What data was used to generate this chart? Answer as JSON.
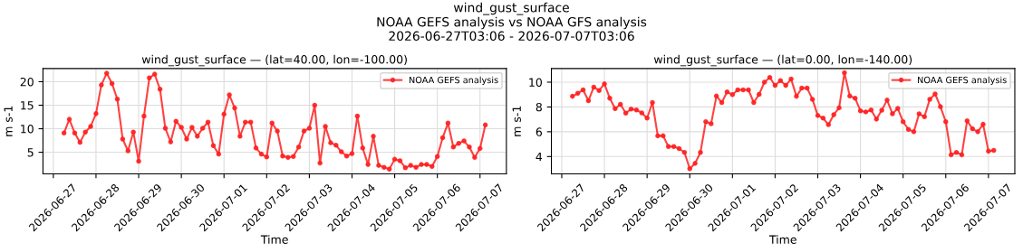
{
  "chart_data": [
    {
      "type": "line",
      "title": "wind_gust_surface — (lat=40.00, lon=-100.00)",
      "annotations": [
        "wind_gust_surface",
        "NOAA GEFS analysis vs NOAA GFS analysis",
        "2026-06-27T03:06 - 2026-07-07T03:06"
      ],
      "xlabel": "Time",
      "ylabel": "m s-1",
      "x": [
        "2026-06-27T06:00",
        "2026-06-27T09:00",
        "2026-06-27T12:00",
        "2026-06-27T15:00",
        "2026-06-27T18:00",
        "2026-06-27T21:00",
        "2026-06-28T00:00",
        "2026-06-28T03:00",
        "2026-06-28T06:00",
        "2026-06-28T09:00",
        "2026-06-28T12:00",
        "2026-06-28T15:00",
        "2026-06-28T18:00",
        "2026-06-28T21:00",
        "2026-06-29T00:00",
        "2026-06-29T03:00",
        "2026-06-29T06:00",
        "2026-06-29T09:00",
        "2026-06-29T12:00",
        "2026-06-29T15:00",
        "2026-06-29T18:00",
        "2026-06-29T21:00",
        "2026-06-30T00:00",
        "2026-06-30T03:00",
        "2026-06-30T06:00",
        "2026-06-30T09:00",
        "2026-06-30T12:00",
        "2026-06-30T15:00",
        "2026-06-30T18:00",
        "2026-06-30T21:00",
        "2026-07-01T00:00",
        "2026-07-01T03:00",
        "2026-07-01T06:00",
        "2026-07-01T09:00",
        "2026-07-01T12:00",
        "2026-07-01T15:00",
        "2026-07-01T18:00",
        "2026-07-01T21:00",
        "2026-07-02T00:00",
        "2026-07-02T03:00",
        "2026-07-02T06:00",
        "2026-07-02T09:00",
        "2026-07-02T12:00",
        "2026-07-02T15:00",
        "2026-07-02T18:00",
        "2026-07-02T21:00",
        "2026-07-03T00:00",
        "2026-07-03T03:00",
        "2026-07-03T06:00",
        "2026-07-03T09:00",
        "2026-07-03T12:00",
        "2026-07-03T15:00",
        "2026-07-03T18:00",
        "2026-07-03T21:00",
        "2026-07-04T00:00",
        "2026-07-04T03:00",
        "2026-07-04T06:00",
        "2026-07-04T09:00",
        "2026-07-04T12:00",
        "2026-07-04T15:00",
        "2026-07-04T18:00",
        "2026-07-04T21:00",
        "2026-07-05T00:00",
        "2026-07-05T03:00",
        "2026-07-05T06:00",
        "2026-07-05T09:00",
        "2026-07-05T12:00",
        "2026-07-05T15:00",
        "2026-07-05T18:00",
        "2026-07-05T21:00",
        "2026-07-06T00:00",
        "2026-07-06T03:00",
        "2026-07-06T06:00",
        "2026-07-06T09:00",
        "2026-07-06T12:00",
        "2026-07-06T15:00",
        "2026-07-06T18:00",
        "2026-07-06T21:00",
        "2026-07-07T00:00",
        "2026-07-07T03:00"
      ],
      "series": [
        {
          "name": "NOAA GEFS analysis",
          "color": "#ff2020",
          "values": [
            9.1,
            12.0,
            9.1,
            7.1,
            9.3,
            10.5,
            13.2,
            19.3,
            21.8,
            19.6,
            16.3,
            7.8,
            5.3,
            9.3,
            3.1,
            12.7,
            20.8,
            21.6,
            18.4,
            10.1,
            7.2,
            11.6,
            10.3,
            7.8,
            10.3,
            8.4,
            10.1,
            11.4,
            6.4,
            4.6,
            13.1,
            17.2,
            14.4,
            8.4,
            11.4,
            11.4,
            5.9,
            4.6,
            4.0,
            11.2,
            9.5,
            4.2,
            3.9,
            4.1,
            6.1,
            9.5,
            10.1,
            15.0,
            2.7,
            10.5,
            7.0,
            6.5,
            5.1,
            4.2,
            4.7,
            12.7,
            5.9,
            2.4,
            8.4,
            2.2,
            1.8,
            1.4,
            3.5,
            3.2,
            1.7,
            2.2,
            1.8,
            2.4,
            2.4,
            2.0,
            4.1,
            8.1,
            11.2,
            6.1,
            6.9,
            7.4,
            6.1,
            3.9,
            5.8,
            10.8
          ]
        }
      ],
      "xlim": [
        "2026-06-26T18:10",
        "2026-07-07T14:50"
      ],
      "xticks": [
        "2026-06-27",
        "2026-06-28",
        "2026-06-29",
        "2026-06-30",
        "2026-07-01",
        "2026-07-02",
        "2026-07-03",
        "2026-07-04",
        "2026-07-05",
        "2026-07-06",
        "2026-07-07"
      ],
      "ylim": [
        0.4,
        22.8
      ],
      "yticks": [
        5,
        10,
        15,
        20
      ],
      "grid": true,
      "legend": "top right",
      "marker": "circle",
      "line_style": "solid"
    },
    {
      "type": "line",
      "title": "wind_gust_surface — (lat=0.00, lon=-140.00)",
      "xlabel": "Time",
      "ylabel": "m s-1",
      "x": [
        "2026-06-27T06:00",
        "2026-06-27T09:00",
        "2026-06-27T12:00",
        "2026-06-27T15:00",
        "2026-06-27T18:00",
        "2026-06-27T21:00",
        "2026-06-28T00:00",
        "2026-06-28T03:00",
        "2026-06-28T06:00",
        "2026-06-28T09:00",
        "2026-06-28T12:00",
        "2026-06-28T15:00",
        "2026-06-28T18:00",
        "2026-06-28T21:00",
        "2026-06-29T00:00",
        "2026-06-29T03:00",
        "2026-06-29T06:00",
        "2026-06-29T09:00",
        "2026-06-29T12:00",
        "2026-06-29T15:00",
        "2026-06-29T18:00",
        "2026-06-29T21:00",
        "2026-06-30T00:00",
        "2026-06-30T03:00",
        "2026-06-30T06:00",
        "2026-06-30T09:00",
        "2026-06-30T12:00",
        "2026-06-30T15:00",
        "2026-06-30T18:00",
        "2026-06-30T21:00",
        "2026-07-01T00:00",
        "2026-07-01T03:00",
        "2026-07-01T06:00",
        "2026-07-01T09:00",
        "2026-07-01T12:00",
        "2026-07-01T15:00",
        "2026-07-01T18:00",
        "2026-07-01T21:00",
        "2026-07-02T00:00",
        "2026-07-02T03:00",
        "2026-07-02T06:00",
        "2026-07-02T09:00",
        "2026-07-02T12:00",
        "2026-07-02T15:00",
        "2026-07-02T18:00",
        "2026-07-02T21:00",
        "2026-07-03T00:00",
        "2026-07-03T03:00",
        "2026-07-03T06:00",
        "2026-07-03T09:00",
        "2026-07-03T12:00",
        "2026-07-03T15:00",
        "2026-07-03T18:00",
        "2026-07-03T21:00",
        "2026-07-04T00:00",
        "2026-07-04T03:00",
        "2026-07-04T06:00",
        "2026-07-04T09:00",
        "2026-07-04T12:00",
        "2026-07-04T15:00",
        "2026-07-04T18:00",
        "2026-07-04T21:00",
        "2026-07-05T00:00",
        "2026-07-05T03:00",
        "2026-07-05T06:00",
        "2026-07-05T09:00",
        "2026-07-05T12:00",
        "2026-07-05T15:00",
        "2026-07-05T18:00",
        "2026-07-05T21:00",
        "2026-07-06T00:00",
        "2026-07-06T03:00",
        "2026-07-06T06:00",
        "2026-07-06T09:00",
        "2026-07-06T12:00",
        "2026-07-06T15:00",
        "2026-07-06T18:00",
        "2026-07-06T21:00",
        "2026-07-07T00:00",
        "2026-07-07T03:00"
      ],
      "series": [
        {
          "name": "NOAA GEFS analysis",
          "color": "#ff2020",
          "values": [
            8.86,
            9.1,
            9.38,
            8.5,
            9.6,
            9.33,
            9.86,
            8.71,
            7.86,
            8.21,
            7.5,
            7.83,
            7.76,
            7.52,
            7.1,
            8.36,
            5.67,
            5.67,
            4.81,
            4.81,
            4.64,
            4.33,
            3.02,
            3.45,
            4.33,
            6.81,
            6.64,
            8.88,
            8.36,
            9.21,
            9.0,
            9.38,
            9.38,
            9.38,
            8.36,
            9.02,
            10.0,
            10.38,
            9.74,
            10.12,
            9.74,
            10.26,
            8.86,
            9.52,
            9.52,
            8.62,
            7.31,
            7.1,
            6.57,
            7.38,
            7.93,
            10.76,
            8.88,
            8.71,
            7.69,
            7.6,
            7.76,
            7.02,
            7.74,
            8.55,
            7.45,
            7.88,
            6.81,
            6.19,
            6.0,
            7.45,
            7.21,
            8.62,
            9.05,
            8.02,
            6.81,
            4.14,
            4.33,
            4.14,
            6.88,
            6.24,
            6.0,
            6.6,
            4.43,
            4.5
          ]
        }
      ],
      "xlim": [
        "2026-06-26T18:10",
        "2026-07-07T14:50"
      ],
      "xticks": [
        "2026-06-27",
        "2026-06-28",
        "2026-06-29",
        "2026-06-30",
        "2026-07-01",
        "2026-07-02",
        "2026-07-03",
        "2026-07-04",
        "2026-07-05",
        "2026-07-06",
        "2026-07-07"
      ],
      "ylim": [
        2.6,
        11.1
      ],
      "yticks": [
        4,
        6,
        8,
        10
      ],
      "grid": true,
      "legend": "top right",
      "marker": "circle",
      "line_style": "solid"
    }
  ]
}
